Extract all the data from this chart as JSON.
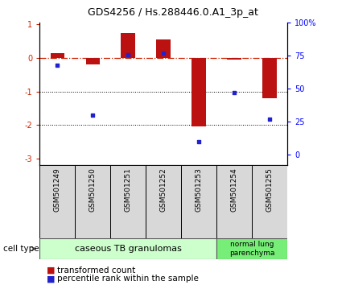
{
  "title": "GDS4256 / Hs.288446.0.A1_3p_at",
  "samples": [
    "GSM501249",
    "GSM501250",
    "GSM501251",
    "GSM501252",
    "GSM501253",
    "GSM501254",
    "GSM501255"
  ],
  "transformed_count": [
    0.15,
    -0.2,
    0.75,
    0.55,
    -2.05,
    -0.05,
    -1.2
  ],
  "percentile_rank": [
    68,
    30,
    76,
    77,
    10,
    47,
    27
  ],
  "ylim_left": [
    -3.2,
    1.05
  ],
  "ylim_right": [
    -8,
    100
  ],
  "yticks_left": [
    1,
    0,
    -1,
    -2,
    -3
  ],
  "yticks_right": [
    0,
    25,
    50,
    75,
    100
  ],
  "ytick_labels_right": [
    "0",
    "25",
    "50",
    "75",
    "100%"
  ],
  "bar_color": "#bb1111",
  "dot_color": "#2222cc",
  "dotted_lines": [
    -1,
    -2
  ],
  "group1_label": "caseous TB granulomas",
  "group2_label": "normal lung\nparenchyma",
  "group1_color": "#ccffcc",
  "group2_color": "#77ee77",
  "cell_type_label": "cell type",
  "legend_bar_label": "transformed count",
  "legend_dot_label": "percentile rank within the sample",
  "title_fontsize": 9,
  "bar_width": 0.4,
  "tick_label_fontsize": 7,
  "sample_fontsize": 6.5,
  "group_fontsize": 8,
  "legend_fontsize": 7.5
}
